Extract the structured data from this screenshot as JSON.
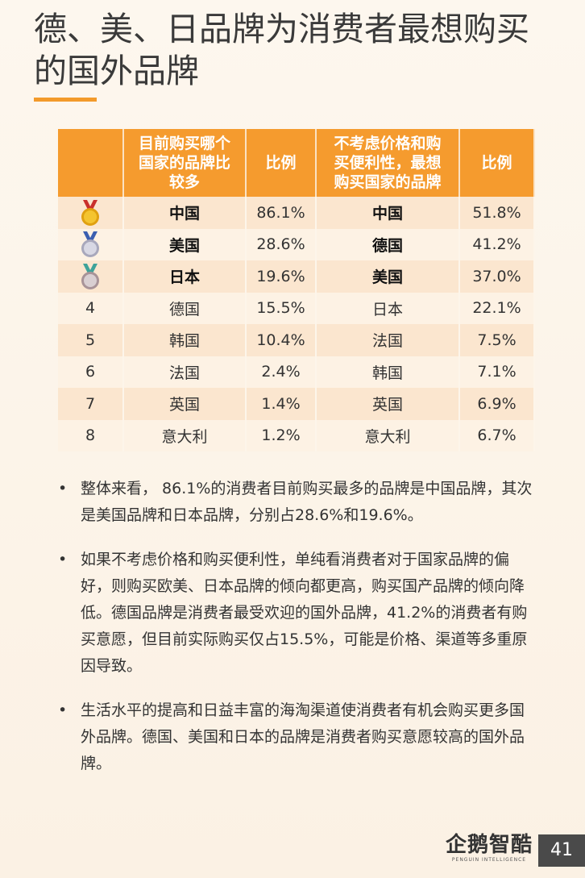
{
  "header": {
    "title": [
      "德、美、日品牌为消费者最想购买",
      "的国外品牌"
    ]
  },
  "table": {
    "headers": [
      [
        "目前购买哪个",
        "国家的品牌比",
        "较多"
      ],
      [
        "比例"
      ],
      [
        "不考虑价格和购",
        "买便利性，最想",
        "购买国家的品牌"
      ],
      [
        "比例"
      ]
    ],
    "rows": [
      {
        "current": "中国",
        "current_pct": "86.1%",
        "preferred": "中国",
        "preferred_pct": "51.8%"
      },
      {
        "current": "美国",
        "current_pct": "28.6%",
        "preferred": "德国",
        "preferred_pct": "41.2%"
      },
      {
        "current": "日本",
        "current_pct": "19.6%",
        "preferred": "美国",
        "preferred_pct": "37.0%"
      },
      {
        "rank": "4",
        "current": "德国",
        "current_pct": "15.5%",
        "preferred": "日本",
        "preferred_pct": "22.1%"
      },
      {
        "rank": "5",
        "current": "韩国",
        "current_pct": "10.4%",
        "preferred": "法国",
        "preferred_pct": "7.5%"
      },
      {
        "rank": "6",
        "current": "法国",
        "current_pct": "2.4%",
        "preferred": "韩国",
        "preferred_pct": "7.1%"
      },
      {
        "rank": "7",
        "current": "英国",
        "current_pct": "1.4%",
        "preferred": "英国",
        "preferred_pct": "6.9%"
      },
      {
        "rank": "8",
        "current": "意大利",
        "current_pct": "1.2%",
        "preferred": "意大利",
        "preferred_pct": "6.7%"
      }
    ]
  },
  "bullets": [
    "整体来看， 86.1%的消费者目前购买最多的品牌是中国品牌，其次是美国品牌和日本品牌，分别占28.6%和19.6%。",
    "如果不考虑价格和购买便利性，单纯看消费者对于国家品牌的偏好，则购买欧美、日本品牌的倾向都更高，购买国产品牌的倾向降低。德国品牌是消费者最受欢迎的国外品牌，41.2%的消费者有购买意愿，但目前实际购买仅占15.5%，可能是价格、渠道等多重原因导致。",
    "生活水平的提高和日益丰富的海淘渠道使消费者有机会购买更多国外品牌。德国、美国和日本的品牌是消费者购买意愿较高的国外品牌。"
  ],
  "footer": {
    "logo": "企鹅智酷",
    "logo_sub": "PENGUIN INTELLIGENCE",
    "page": "41"
  }
}
